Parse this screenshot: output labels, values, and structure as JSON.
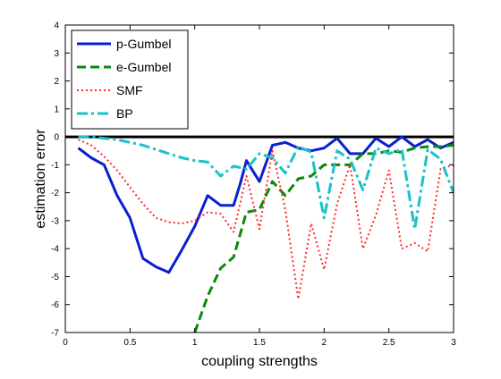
{
  "chart_data": {
    "type": "line",
    "title": "",
    "xlabel": "coupling strengths",
    "ylabel": "estimation error",
    "xlim": [
      0,
      3
    ],
    "ylim": [
      -7,
      4
    ],
    "xticks": [
      0,
      0.5,
      1,
      1.5,
      2,
      2.5,
      3
    ],
    "xtick_labels": [
      "0",
      "0.5",
      "1",
      "1.5",
      "2",
      "2.5",
      "3"
    ],
    "yticks": [
      -7,
      -6,
      -5,
      -4,
      -3,
      -2,
      -1,
      0,
      1,
      2,
      3,
      4
    ],
    "ytick_labels": [
      "-7",
      "-6",
      "-5",
      "-4",
      "-3",
      "-2",
      "-1",
      "0",
      "1",
      "2",
      "3",
      "4"
    ],
    "grid": false,
    "legend_position": "top-left",
    "reference_line": {
      "y": 0,
      "color": "#000000"
    },
    "series": [
      {
        "name": "p-Gumbel",
        "color": "#0a1fd0",
        "style": "solid",
        "x": [
          0.1,
          0.2,
          0.3,
          0.4,
          0.5,
          0.6,
          0.7,
          0.8,
          0.9,
          1.0,
          1.1,
          1.2,
          1.3,
          1.35,
          1.4,
          1.5,
          1.6,
          1.7,
          1.8,
          1.9,
          2.0,
          2.1,
          2.2,
          2.3,
          2.4,
          2.5,
          2.6,
          2.7,
          2.8,
          2.9,
          3.0
        ],
        "values": [
          -0.4,
          -0.75,
          -1.0,
          -2.1,
          -2.9,
          -4.35,
          -4.65,
          -4.85,
          -4.05,
          -3.2,
          -2.1,
          -2.45,
          -2.45,
          -1.7,
          -0.85,
          -1.6,
          -0.3,
          -0.2,
          -0.4,
          -0.5,
          -0.4,
          -0.05,
          -0.6,
          -0.6,
          -0.05,
          -0.35,
          0.0,
          -0.35,
          -0.1,
          -0.4,
          -0.2
        ]
      },
      {
        "name": "e-Gumbel",
        "color": "#0a8a0a",
        "style": "dashed",
        "x": [
          1.0,
          1.1,
          1.2,
          1.3,
          1.4,
          1.5,
          1.6,
          1.7,
          1.8,
          1.9,
          2.0,
          2.1,
          2.2,
          2.3,
          2.4,
          2.5,
          2.6,
          2.7,
          2.8,
          2.9,
          3.0
        ],
        "values": [
          -7.0,
          -5.7,
          -4.7,
          -4.3,
          -2.7,
          -2.6,
          -1.6,
          -2.1,
          -1.5,
          -1.4,
          -1.0,
          -1.0,
          -1.0,
          -0.6,
          -0.6,
          -0.5,
          -0.55,
          -0.4,
          -0.35,
          -0.35,
          -0.3
        ]
      },
      {
        "name": "SMF",
        "color": "#ff2a2a",
        "style": "dotted",
        "x": [
          0.1,
          0.2,
          0.3,
          0.4,
          0.5,
          0.6,
          0.7,
          0.8,
          0.9,
          1.0,
          1.1,
          1.2,
          1.3,
          1.4,
          1.5,
          1.6,
          1.7,
          1.8,
          1.9,
          2.0,
          2.1,
          2.2,
          2.3,
          2.4,
          2.5,
          2.6,
          2.7,
          2.8,
          2.9,
          3.0
        ],
        "values": [
          -0.1,
          -0.3,
          -0.7,
          -1.2,
          -1.8,
          -2.4,
          -2.9,
          -3.05,
          -3.1,
          -3.0,
          -2.7,
          -2.75,
          -3.4,
          -1.4,
          -3.3,
          -0.5,
          -2.6,
          -5.8,
          -3.1,
          -4.75,
          -2.4,
          -1.0,
          -4.0,
          -2.8,
          -1.2,
          -4.0,
          -3.8,
          -4.1,
          -1.15,
          -1.0
        ]
      },
      {
        "name": "BP",
        "color": "#19c2c8",
        "style": "dashdot",
        "x": [
          0.1,
          0.2,
          0.3,
          0.4,
          0.5,
          0.6,
          0.7,
          0.8,
          0.9,
          1.0,
          1.1,
          1.2,
          1.3,
          1.4,
          1.5,
          1.6,
          1.7,
          1.8,
          1.9,
          2.0,
          2.1,
          2.2,
          2.3,
          2.4,
          2.5,
          2.6,
          2.7,
          2.8,
          2.9,
          3.0
        ],
        "values": [
          0.0,
          0.0,
          -0.05,
          -0.1,
          -0.2,
          -0.3,
          -0.45,
          -0.6,
          -0.75,
          -0.85,
          -0.9,
          -1.4,
          -1.05,
          -1.15,
          -0.6,
          -0.75,
          -1.3,
          -0.35,
          -0.55,
          -2.9,
          -0.5,
          -0.8,
          -1.9,
          -0.4,
          -0.6,
          -0.45,
          -3.3,
          -0.45,
          -0.8,
          -2.0
        ]
      }
    ]
  }
}
